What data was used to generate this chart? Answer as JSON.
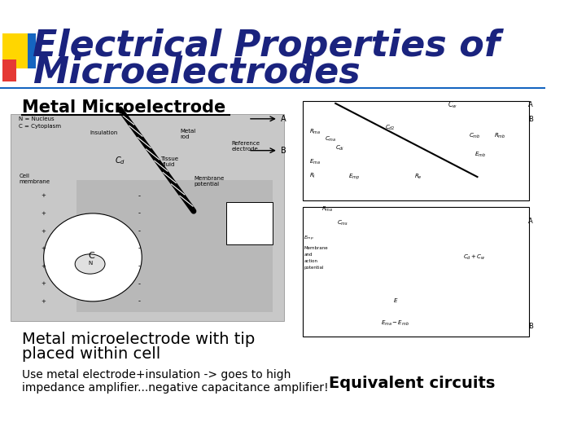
{
  "title_line1": "Electrical Properties of",
  "title_line2": "Microelectrodes",
  "title_color": "#1a237e",
  "title_fontsize": 32,
  "section_label": "Metal Microelectrode",
  "section_label_fontsize": 15,
  "caption1_line1": "Metal microelectrode with tip",
  "caption1_line2": "placed within cell",
  "caption1_fontsize": 14,
  "caption2_line1": "Use metal electrode+insulation -> goes to high",
  "caption2_line2": "impedance amplifier...negative capacitance amplifier!",
  "caption2_fontsize": 10,
  "equiv_label": "Equivalent circuits",
  "equiv_fontsize": 14,
  "background_color": "#ffffff",
  "header_bar_color": "#1565c0",
  "yellow_square_color": "#ffd600",
  "red_square_color": "#e53935",
  "blue_line_color": "#1565c0"
}
